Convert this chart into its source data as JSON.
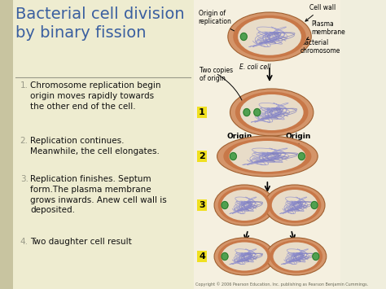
{
  "bg_color": "#f0eedd",
  "left_bg": "#eeecd0",
  "left_strip_color": "#c8c4a0",
  "title": "Bacterial cell division\nby binary fission",
  "title_color": "#3a5fa0",
  "title_fontsize": 14,
  "steps": [
    {
      "num": "1.",
      "text": "Chromosome replication begin\norigin moves rapidly towards\nthe other end of the cell."
    },
    {
      "num": "2.",
      "text": "Replication continues.\nMeanwhile, the cell elongates."
    },
    {
      "num": "3.",
      "text": "Replication finishes. Septum\nform.The plasma membrane\ngrows inwards. Anew cell wall is\ndeposited."
    },
    {
      "num": "4.",
      "text": "Two daughter cell result"
    }
  ],
  "step_num_color": "#999988",
  "step_text_color": "#111111",
  "step_fontsize": 7.5,
  "label_bg_color": "#f0e020",
  "divider_color": "#999988",
  "cell_wall_outer": "#d4956a",
  "cell_wall_mid": "#c07848",
  "cell_inner_bg": "#e8dcc8",
  "cell_chrom_color": "#9090c8",
  "cell_origin_color": "#50a050",
  "copyright": "Copyright © 2006 Pearson Education, Inc. publishing as Pearson Benjamin Cummings."
}
